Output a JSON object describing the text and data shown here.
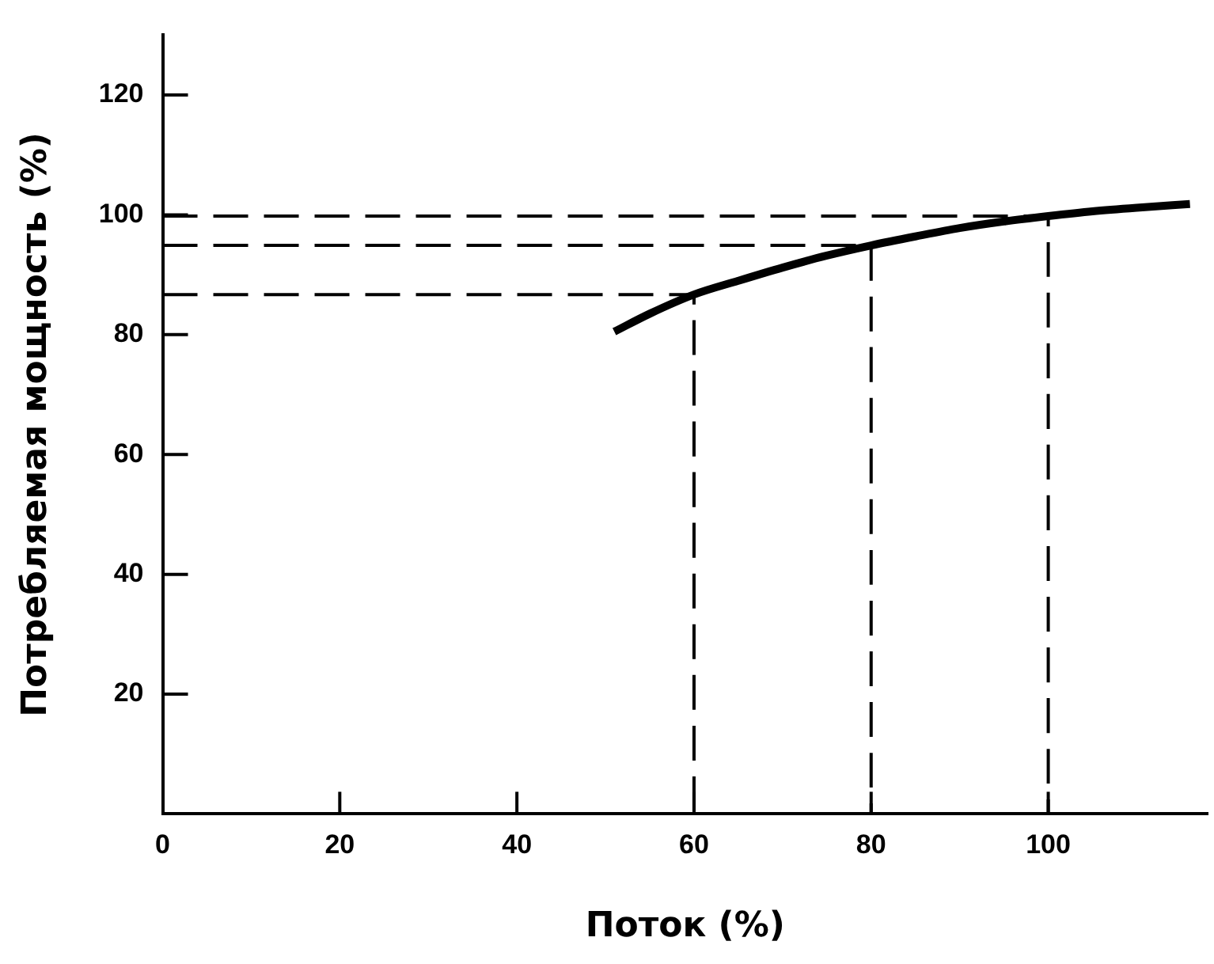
{
  "chart_data": {
    "type": "line",
    "xlabel": "Поток (%)",
    "ylabel": "Потребляемая мощность (%)",
    "xlim": [
      0,
      118
    ],
    "xticks": [
      0,
      20,
      40,
      60,
      80,
      100
    ],
    "ylim": [
      0,
      130
    ],
    "yticks": [
      20,
      40,
      60,
      80,
      100,
      120
    ],
    "grid": false,
    "legend": false,
    "marker": "none",
    "series": [
      {
        "color": "#000000",
        "x": [
          51,
          55,
          60,
          65,
          70,
          75,
          80,
          85,
          90,
          95,
          100,
          105,
          110,
          116
        ],
        "values": [
          80.5,
          83.5,
          86.7,
          89,
          91.2,
          93.2,
          94.9,
          96.4,
          97.8,
          98.9,
          99.8,
          100.6,
          101.2,
          101.8
        ]
      },
      {
        "color": "#000000",
        "line_style": "dashed",
        "x": [
          0,
          60,
          60
        ],
        "values": [
          86.7,
          86.7,
          0
        ]
      },
      {
        "color": "#000000",
        "line_style": "dashed",
        "x": [
          0,
          80,
          80
        ],
        "values": [
          94.9,
          94.9,
          0
        ]
      },
      {
        "color": "#000000",
        "line_style": "dashed",
        "x": [
          0,
          100,
          100
        ],
        "values": [
          99.8,
          99.8,
          0
        ]
      }
    ]
  }
}
